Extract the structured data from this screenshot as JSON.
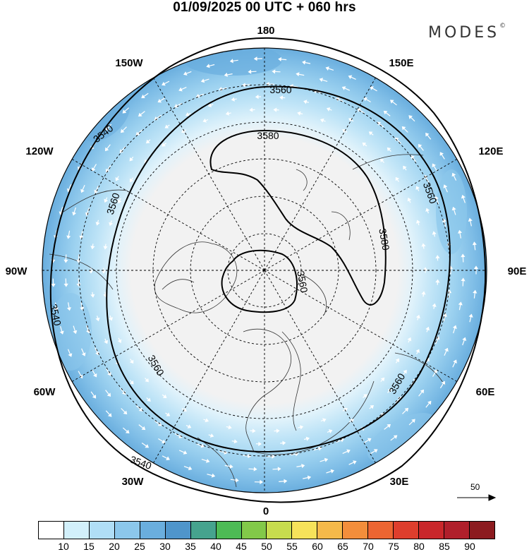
{
  "title": "01/09/2025  00 UTC  + 060 hrs",
  "brand": {
    "name": "MODES",
    "mark": "©"
  },
  "map": {
    "projection": "north polar stereographic",
    "longitude_labels": {
      "top": "180",
      "bottom": "0",
      "left": "90W",
      "right": "90E",
      "upper_left": "150W",
      "upper_right": "150E",
      "mid_upper_left": "120W",
      "mid_upper_right": "120E",
      "mid_lower_left": "60W",
      "mid_lower_right": "60E",
      "lower_left": "30W",
      "lower_right": "30E"
    },
    "contour_labels": [
      "3540",
      "3560",
      "3580"
    ],
    "colors": {
      "ocean_fill": "#f2f2f2",
      "contour": "#000000",
      "wind_arrows": "#ffffff"
    }
  },
  "reference_vector": {
    "label": "50"
  },
  "colorbar": {
    "colors": [
      "#ffffff",
      "#d2f0fb",
      "#b0def6",
      "#8cc7eb",
      "#6aaede",
      "#4f95cb",
      "#46a38e",
      "#4dbb55",
      "#82c949",
      "#c7dc4e",
      "#f6e25a",
      "#f5b94a",
      "#f38e3b",
      "#ec6532",
      "#de3e2d",
      "#c9272b",
      "#b01f2b",
      "#8c1b1f"
    ],
    "tick_labels": [
      "10",
      "15",
      "20",
      "25",
      "30",
      "35",
      "40",
      "45",
      "50",
      "55",
      "60",
      "65",
      "70",
      "75",
      "80",
      "85",
      "90"
    ]
  }
}
